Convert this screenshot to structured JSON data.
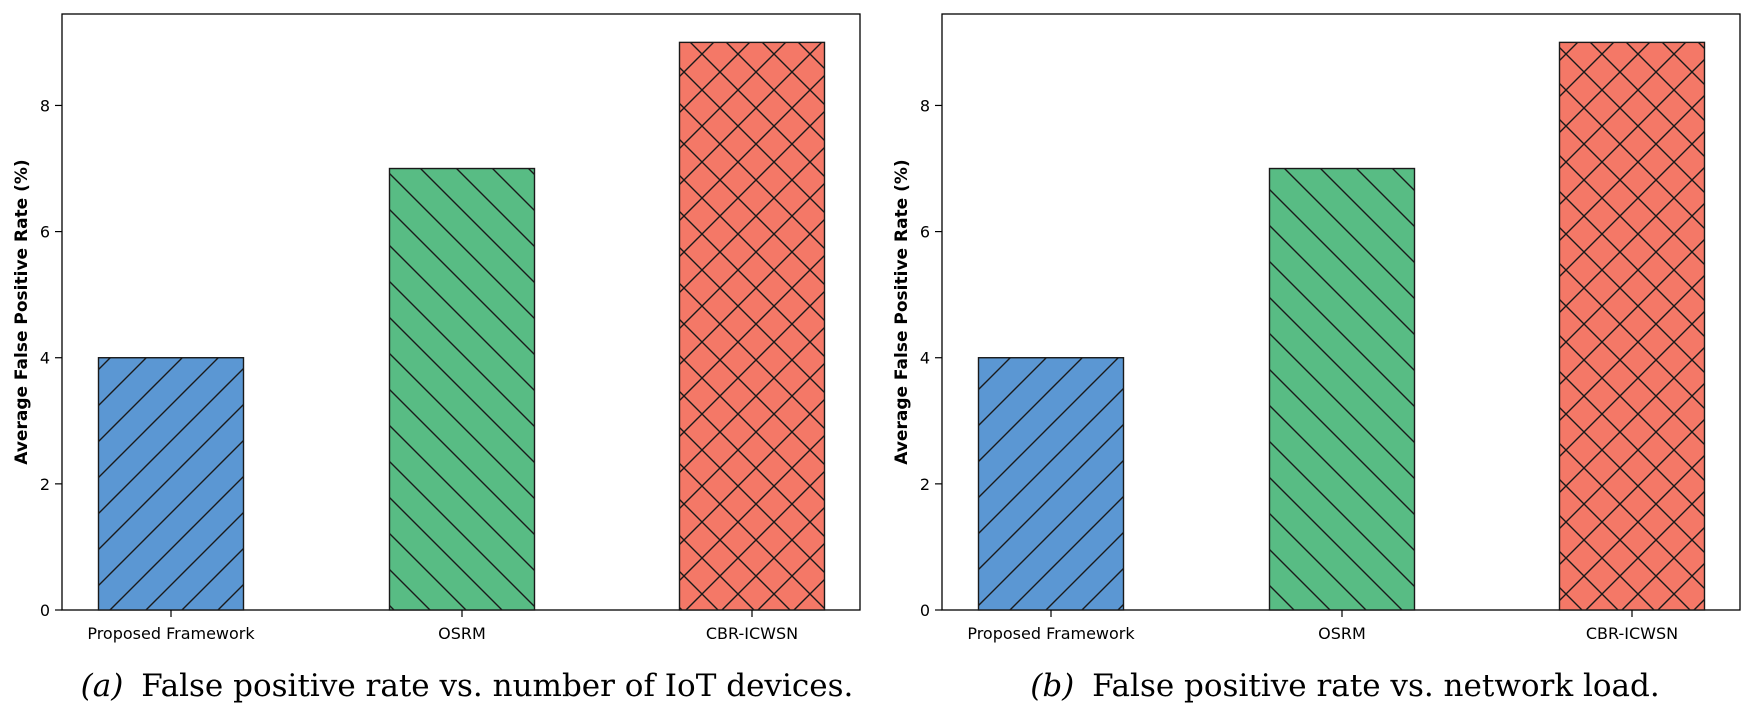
{
  "chart_data": [
    {
      "type": "bar",
      "panel": "a",
      "categories": [
        "Proposed Framework",
        "OSRM",
        "CBR-ICWSN"
      ],
      "values": [
        4,
        7,
        9
      ],
      "colors": [
        "#5b97d3",
        "#58bc84",
        "#f47867"
      ],
      "hatches": [
        "/",
        "\\",
        "x"
      ],
      "ylabel": "Average False Positive Rate (%)",
      "xlabel": "",
      "ylim": [
        0,
        9.45
      ],
      "yticks": [
        0,
        2,
        4,
        6,
        8
      ],
      "caption_letter": "(a)",
      "caption_text": "False positive rate vs. number of IoT devices."
    },
    {
      "type": "bar",
      "panel": "b",
      "categories": [
        "Proposed Framework",
        "OSRM",
        "CBR-ICWSN"
      ],
      "values": [
        4,
        7,
        9
      ],
      "colors": [
        "#5b97d3",
        "#58bc84",
        "#f47867"
      ],
      "hatches": [
        "/",
        "\\",
        "x"
      ],
      "ylabel": "Average False Positive Rate (%)",
      "xlabel": "",
      "ylim": [
        0,
        9.45
      ],
      "yticks": [
        0,
        2,
        4,
        6,
        8
      ],
      "caption_letter": "(b)",
      "caption_text": "False positive rate vs. network load."
    }
  ]
}
